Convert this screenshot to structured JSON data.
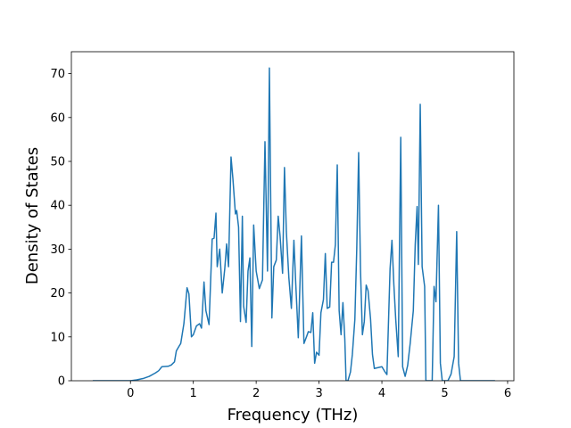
{
  "chart_data": {
    "type": "line",
    "xlabel": "Frequency (THz)",
    "ylabel": "Density of States",
    "xlim": [
      -0.94,
      6.1
    ],
    "ylim": [
      0,
      75
    ],
    "xticks": [
      0,
      1,
      2,
      3,
      4,
      5,
      6
    ],
    "yticks": [
      0,
      10,
      20,
      30,
      40,
      50,
      60,
      70
    ],
    "x": [
      -0.6,
      0.0,
      0.1,
      0.2,
      0.3,
      0.4,
      0.45,
      0.5,
      0.6,
      0.65,
      0.7,
      0.73,
      0.77,
      0.8,
      0.85,
      0.9,
      0.93,
      0.97,
      1.0,
      1.05,
      1.1,
      1.13,
      1.17,
      1.2,
      1.25,
      1.3,
      1.33,
      1.36,
      1.38,
      1.42,
      1.46,
      1.5,
      1.53,
      1.56,
      1.6,
      1.63,
      1.67,
      1.69,
      1.72,
      1.75,
      1.78,
      1.8,
      1.84,
      1.87,
      1.9,
      1.93,
      1.96,
      2.0,
      2.05,
      2.1,
      2.14,
      2.18,
      2.21,
      2.25,
      2.28,
      2.32,
      2.35,
      2.38,
      2.42,
      2.45,
      2.48,
      2.52,
      2.56,
      2.6,
      2.63,
      2.67,
      2.72,
      2.76,
      2.8,
      2.83,
      2.87,
      2.9,
      2.93,
      2.96,
      3.0,
      3.03,
      3.07,
      3.1,
      3.13,
      3.17,
      3.2,
      3.23,
      3.26,
      3.29,
      3.32,
      3.35,
      3.38,
      3.41,
      3.43,
      3.46,
      3.5,
      3.53,
      3.57,
      3.6,
      3.63,
      3.66,
      3.69,
      3.72,
      3.75,
      3.78,
      3.82,
      3.85,
      3.88,
      4.0,
      4.05,
      4.08,
      4.1,
      4.13,
      4.16,
      4.19,
      4.22,
      4.26,
      4.3,
      4.33,
      4.37,
      4.41,
      4.45,
      4.5,
      4.53,
      4.56,
      4.58,
      4.61,
      4.64,
      4.68,
      4.7,
      4.8,
      4.83,
      4.86,
      4.9,
      4.93,
      4.96,
      5.05,
      5.1,
      5.15,
      5.19,
      5.22,
      5.25,
      5.8
    ],
    "series": [
      {
        "color": "#1f77b4",
        "values": [
          0,
          0,
          0.2,
          0.5,
          1,
          1.8,
          2.3,
          3.2,
          3.3,
          3.6,
          4.3,
          6.8,
          7.8,
          8.5,
          13,
          21.2,
          19.8,
          10,
          10.5,
          12.5,
          13,
          12,
          22.5,
          16,
          12.8,
          32.3,
          32.5,
          38.2,
          26,
          30,
          20,
          25.5,
          31.2,
          26,
          51,
          46,
          38,
          38.8,
          35,
          13.5,
          37.5,
          17,
          13.3,
          25,
          28,
          7.8,
          35.5,
          25,
          21,
          23,
          54.5,
          25,
          71.3,
          14.3,
          26,
          27.5,
          37.5,
          33,
          24.5,
          48.6,
          34,
          23.5,
          16.5,
          32,
          22,
          9.8,
          33,
          8.5,
          10,
          11.2,
          11,
          15.5,
          4,
          6.5,
          5.8,
          15.5,
          18.5,
          29,
          16.5,
          16.8,
          27,
          27,
          31,
          49.2,
          16,
          10.5,
          17.8,
          9.5,
          0,
          0,
          2,
          6,
          14,
          30,
          52,
          25,
          10.5,
          13.5,
          21.8,
          20.5,
          14,
          6,
          2.8,
          3.2,
          2,
          1.4,
          11,
          25.5,
          32,
          22,
          14,
          5.5,
          55.5,
          3.2,
          1,
          3.5,
          8.5,
          16,
          31,
          39.7,
          26.5,
          63,
          26,
          21.5,
          0,
          0,
          21.5,
          18,
          40,
          4,
          0,
          0,
          1.5,
          5.5,
          34,
          4,
          0,
          0
        ]
      }
    ]
  }
}
